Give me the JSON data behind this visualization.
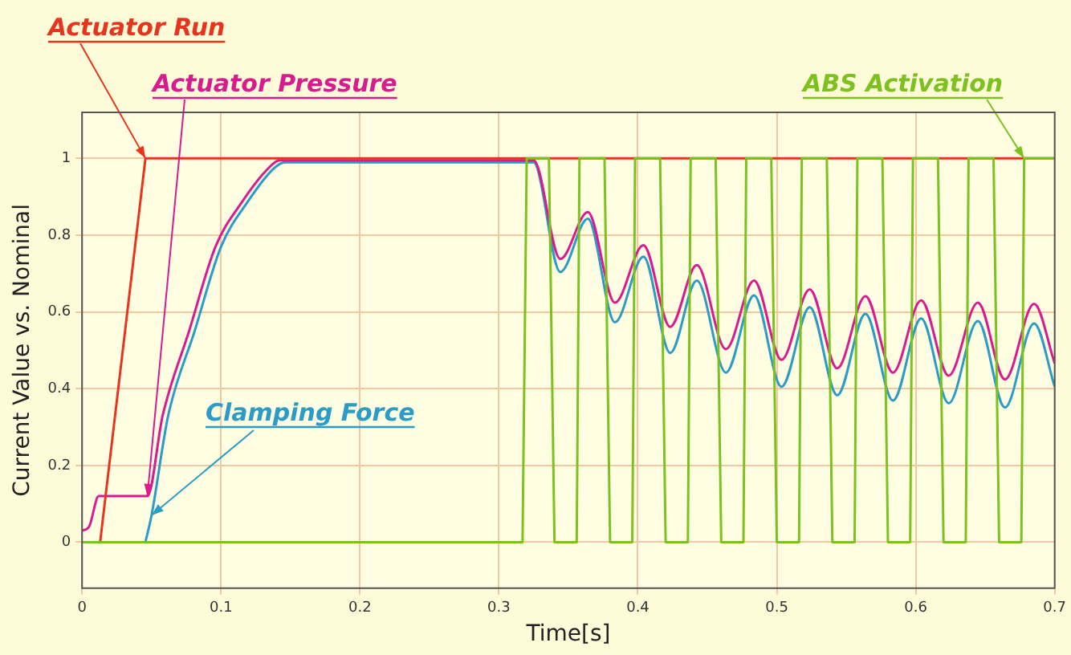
{
  "chart_data": {
    "type": "line",
    "xlabel": "Time[s]",
    "ylabel": "Current Value vs. Nominal",
    "xlim": [
      0,
      0.7
    ],
    "xticks": [
      0,
      0.1,
      0.2,
      0.3,
      0.4,
      0.5,
      0.6,
      0.7
    ],
    "ylim": [
      -0.12,
      1.12
    ],
    "yticks": [
      0,
      0.2,
      0.4,
      0.6,
      0.8,
      1
    ],
    "grid": true,
    "legend": false,
    "marker": "none",
    "line_style": "solid",
    "series": [
      {
        "name": "Actuator Run",
        "color": "#e8341c",
        "x": [
          0.013,
          0.0456,
          0.7
        ],
        "values": [
          0,
          1,
          1
        ]
      },
      {
        "name": "Actuator Pressure",
        "color": "#d81b8f",
        "x": [
          0,
          0.005,
          0.012,
          0.047,
          0.058,
          0.077,
          0.096,
          0.115,
          0.134,
          0.142,
          0.325,
          0.3442,
          0.364,
          0.3835,
          0.404,
          0.4233,
          0.4424,
          0.4634,
          0.4836,
          0.5034,
          0.5237,
          0.5435,
          0.5638,
          0.5836,
          0.6039,
          0.6237,
          0.6447,
          0.6642,
          0.6852,
          0.7
        ],
        "values": [
          0.03,
          0.04,
          0.12,
          0.12,
          0.33,
          0.55,
          0.77,
          0.886,
          0.974,
          0.995,
          0.995,
          0.738,
          0.86,
          0.624,
          0.774,
          0.561,
          0.722,
          0.503,
          0.682,
          0.475,
          0.659,
          0.453,
          0.641,
          0.442,
          0.63,
          0.434,
          0.624,
          0.424,
          0.621,
          0.466
        ]
      },
      {
        "name": "Clamping Force",
        "color": "#2b9cc6",
        "x": [
          0.0456,
          0.05,
          0.062,
          0.081,
          0.1,
          0.119,
          0.138,
          0.146,
          0.325,
          0.3442,
          0.364,
          0.3835,
          0.404,
          0.4233,
          0.4424,
          0.4634,
          0.4836,
          0.5034,
          0.5237,
          0.5435,
          0.5638,
          0.5836,
          0.6039,
          0.6237,
          0.6447,
          0.6642,
          0.6852,
          0.7
        ],
        "values": [
          0,
          0.07,
          0.33,
          0.55,
          0.77,
          0.886,
          0.974,
          0.99,
          0.99,
          0.704,
          0.843,
          0.573,
          0.744,
          0.493,
          0.682,
          0.442,
          0.643,
          0.405,
          0.612,
          0.383,
          0.595,
          0.369,
          0.583,
          0.362,
          0.576,
          0.351,
          0.57,
          0.405
        ]
      },
      {
        "name": "ABS Activation",
        "color": "#7cc21e",
        "x": [
          0,
          0.317,
          0.32,
          0.336,
          0.34,
          0.356,
          0.358,
          0.376,
          0.38,
          0.396,
          0.398,
          0.416,
          0.42,
          0.436,
          0.438,
          0.456,
          0.46,
          0.476,
          0.478,
          0.496,
          0.5,
          0.516,
          0.518,
          0.536,
          0.54,
          0.556,
          0.558,
          0.576,
          0.58,
          0.596,
          0.598,
          0.616,
          0.62,
          0.636,
          0.638,
          0.656,
          0.66,
          0.676,
          0.678,
          0.7
        ],
        "values": [
          0,
          0,
          1,
          1,
          0,
          0,
          1,
          1,
          0,
          0,
          1,
          1,
          0,
          0,
          1,
          1,
          0,
          0,
          1,
          1,
          0,
          0,
          1,
          1,
          0,
          0,
          1,
          1,
          0,
          0,
          1,
          1,
          0,
          0,
          1,
          1,
          0,
          0,
          1,
          1
        ]
      }
    ]
  }
}
